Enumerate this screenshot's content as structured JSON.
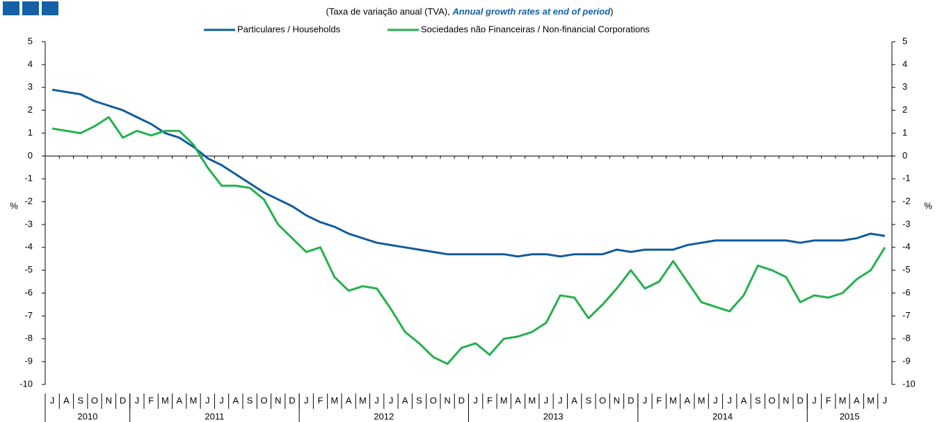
{
  "chart_data": {
    "type": "line",
    "subtitle": [
      "(Taxa de variação anual (TVA), ",
      "Annual growth rates at end of period",
      ")"
    ],
    "y_label": "%",
    "categories": [
      "J",
      "A",
      "S",
      "O",
      "N",
      "D",
      "J",
      "F",
      "M",
      "A",
      "M",
      "J",
      "J",
      "A",
      "S",
      "O",
      "N",
      "D",
      "J",
      "F",
      "M",
      "A",
      "M",
      "J",
      "J",
      "A",
      "S",
      "O",
      "N",
      "D",
      "J",
      "F",
      "M",
      "A",
      "M",
      "J",
      "J",
      "A",
      "S",
      "O",
      "N",
      "D",
      "J",
      "F",
      "M",
      "A",
      "M",
      "J",
      "J",
      "A",
      "S",
      "O",
      "N",
      "D",
      "J",
      "F",
      "M",
      "A",
      "M",
      "J"
    ],
    "years": [
      "2010",
      "2011",
      "2012",
      "2013",
      "2014",
      "2015"
    ],
    "series": [
      {
        "name": "Particulares / Households",
        "color": "#0f5b9e",
        "values": [
          2.9,
          2.8,
          2.7,
          2.4,
          2.2,
          2.0,
          1.7,
          1.4,
          1.0,
          0.8,
          0.4,
          -0.1,
          -0.4,
          -0.8,
          -1.2,
          -1.6,
          -1.9,
          -2.2,
          -2.6,
          -2.9,
          -3.1,
          -3.4,
          -3.6,
          -3.8,
          -3.9,
          -4.0,
          -4.1,
          -4.2,
          -4.3,
          -4.3,
          -4.3,
          -4.3,
          -4.3,
          -4.4,
          -4.3,
          -4.3,
          -4.4,
          -4.3,
          -4.3,
          -4.3,
          -4.1,
          -4.2,
          -4.1,
          -4.1,
          -4.1,
          -3.9,
          -3.8,
          -3.7,
          -3.7,
          -3.7,
          -3.7,
          -3.7,
          -3.7,
          -3.8,
          -3.7,
          -3.7,
          -3.7,
          -3.6,
          -3.4,
          -3.5
        ]
      },
      {
        "name": "Sociedades não Financeiras / Non-financial Corporations",
        "color": "#22b14c",
        "values": [
          1.2,
          1.1,
          1.0,
          1.3,
          1.7,
          0.8,
          1.1,
          0.9,
          1.1,
          1.1,
          0.5,
          -0.5,
          -1.3,
          -1.3,
          -1.4,
          -1.9,
          -3.0,
          -3.6,
          -4.2,
          -4.0,
          -5.3,
          -5.9,
          -5.7,
          -5.8,
          -6.7,
          -7.7,
          -8.2,
          -8.8,
          -9.1,
          -8.4,
          -8.2,
          -8.7,
          -8.0,
          -7.9,
          -7.7,
          -7.3,
          -6.1,
          -6.2,
          -7.1,
          -6.5,
          -5.8,
          -5.0,
          -5.8,
          -5.5,
          -4.6,
          -5.5,
          -6.4,
          -6.6,
          -6.8,
          -6.1,
          -4.8,
          -5.0,
          -5.3,
          -6.4,
          -6.1,
          -6.2,
          -6.0,
          -5.4,
          -5.0,
          -4.0
        ]
      }
    ],
    "ylim": [
      -10,
      5
    ],
    "yticks": [
      5,
      4,
      3,
      2,
      1,
      0,
      -1,
      -2,
      -3,
      -4,
      -5,
      -6,
      -7,
      -8,
      -9,
      -10
    ]
  }
}
